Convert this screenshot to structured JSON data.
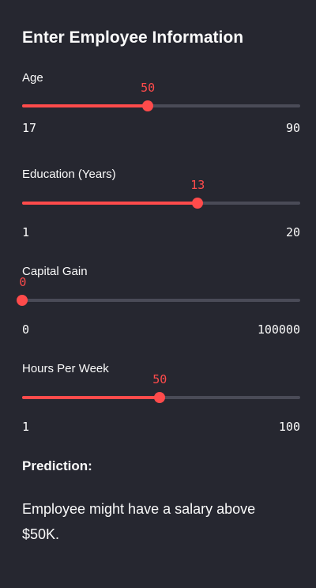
{
  "sidebar": {
    "heading": "Enter Employee Information",
    "sliders": [
      {
        "label": "Age",
        "value": 50,
        "value_text": "50",
        "min": 17,
        "max": 90,
        "min_text": "17",
        "max_text": "90"
      },
      {
        "label": "Education (Years)",
        "value": 13,
        "value_text": "13",
        "min": 1,
        "max": 20,
        "min_text": "1",
        "max_text": "20"
      },
      {
        "label": "Capital Gain",
        "value": 0,
        "value_text": "0",
        "min": 0,
        "max": 100000,
        "min_text": "0",
        "max_text": "100000"
      },
      {
        "label": "Hours Per Week",
        "value": 50,
        "value_text": "50",
        "min": 1,
        "max": 100,
        "min_text": "1",
        "max_text": "100"
      }
    ],
    "prediction": {
      "label": "Prediction:",
      "text": "Employee might have a salary above $50K."
    }
  },
  "colors": {
    "background": "#262730",
    "accent": "#ff4b4b",
    "track": "#4a4b57",
    "text": "#fafafa"
  }
}
